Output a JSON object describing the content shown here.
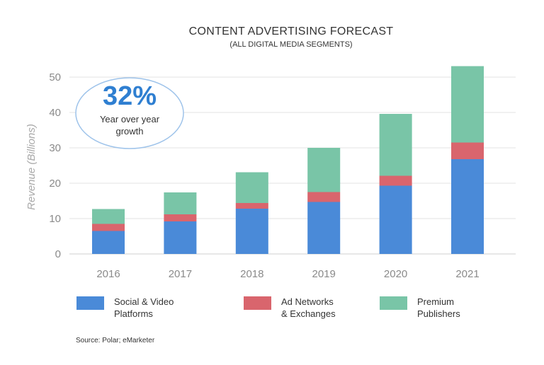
{
  "chart_data": {
    "type": "bar",
    "stacked": true,
    "title": "CONTENT ADVERTISING FORECAST",
    "subtitle": "(ALL DIGITAL MEDIA SEGMENTS)",
    "ylabel": "Revenue (Billions)",
    "xlabel": "",
    "ylim": [
      0,
      55
    ],
    "yticks": [
      0,
      10,
      20,
      30,
      40,
      50
    ],
    "grid": true,
    "legend_position": "bottom",
    "categories": [
      "2016",
      "2017",
      "2018",
      "2019",
      "2020",
      "2021"
    ],
    "series": [
      {
        "name": "Social & Video Platforms",
        "name_lines": [
          "Social & Video",
          "Platforms"
        ],
        "color": "#4a8ad8",
        "values": [
          6.5,
          9.2,
          12.8,
          14.7,
          19.3,
          26.8
        ]
      },
      {
        "name": "Ad Networks & Exchanges",
        "name_lines": [
          "Ad Networks",
          "& Exchanges"
        ],
        "color": "#d9656d",
        "values": [
          2.0,
          2.0,
          1.6,
          2.8,
          2.8,
          4.7
        ]
      },
      {
        "name": "Premium Publishers",
        "name_lines": [
          "Premium",
          "Publishers"
        ],
        "color": "#79c5a7",
        "values": [
          4.2,
          6.2,
          8.7,
          12.5,
          17.5,
          21.6
        ]
      }
    ],
    "callout": {
      "value": "32%",
      "text_lines": [
        "Year over year",
        "growth"
      ]
    },
    "source": "Source: Polar; eMarketer"
  }
}
